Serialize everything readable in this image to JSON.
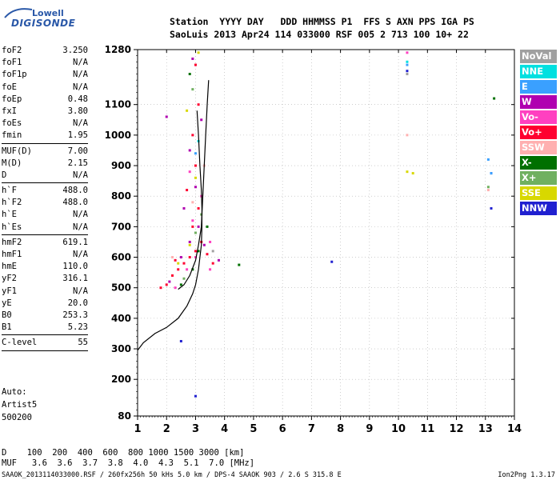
{
  "logo": {
    "word": "Lowell",
    "brand": "DIGISONDE"
  },
  "header": {
    "keys": "Station  YYYY DAY   DDD HHMMSS P1  FFS S AXN PPS IGA PS",
    "values": "SaoLuis 2013 Apr24 114 033000 RSF 005 2 713 100 10+ 22"
  },
  "parameters": [
    {
      "name": "foF2",
      "value": "3.250"
    },
    {
      "name": "foF1",
      "value": "N/A"
    },
    {
      "name": "foF1p",
      "value": "N/A"
    },
    {
      "name": "foE",
      "value": "N/A"
    },
    {
      "name": "foEp",
      "value": "0.48"
    },
    {
      "name": "fxI",
      "value": "3.80"
    },
    {
      "name": "foEs",
      "value": "N/A"
    },
    {
      "name": "fmin",
      "value": "1.95"
    },
    {
      "divider": true
    },
    {
      "name": "MUF(D)",
      "value": "7.00"
    },
    {
      "name": "M(D)",
      "value": "2.15"
    },
    {
      "name": "D",
      "value": "N/A"
    },
    {
      "divider": true
    },
    {
      "name": "h`F",
      "value": "488.0"
    },
    {
      "name": "h`F2",
      "value": "488.0"
    },
    {
      "name": "h`E",
      "value": "N/A"
    },
    {
      "name": "h`Es",
      "value": "N/A"
    },
    {
      "divider": true
    },
    {
      "name": "hmF2",
      "value": "619.1"
    },
    {
      "name": "hmF1",
      "value": "N/A"
    },
    {
      "name": "hmE",
      "value": "110.0"
    },
    {
      "name": "yF2",
      "value": "316.1"
    },
    {
      "name": "yF1",
      "value": "N/A"
    },
    {
      "name": "yE",
      "value": "20.0"
    },
    {
      "name": "B0",
      "value": "253.3"
    },
    {
      "name": "B1",
      "value": "5.23"
    },
    {
      "divider": true
    },
    {
      "name": "C-level",
      "value": "55"
    },
    {
      "divider": true
    }
  ],
  "autoscaling": {
    "label": "Auto:",
    "artist": "Artist5",
    "version": "500200"
  },
  "legend": [
    {
      "label": "NoVal",
      "color": "#a0a0a0"
    },
    {
      "label": "NNE",
      "color": "#00e0e0"
    },
    {
      "label": "E",
      "color": "#3aa0ff"
    },
    {
      "label": "W",
      "color": "#b000b0"
    },
    {
      "label": "Vo-",
      "color": "#ff40c0"
    },
    {
      "label": "Vo+",
      "color": "#ff0030"
    },
    {
      "label": "SSW",
      "color": "#ffb0b0"
    },
    {
      "label": "X-",
      "color": "#007000"
    },
    {
      "label": "X+",
      "color": "#70b060"
    },
    {
      "label": "SSE",
      "color": "#d8d800"
    },
    {
      "label": "NNW",
      "color": "#2020d0"
    }
  ],
  "bottom": {
    "distance_row": "D    100  200  400  600  800 1000 1500 3000 [km]",
    "muf_row": "MUF   3.6  3.6  3.7  3.8  4.0  4.3  5.1  7.0 [MHz]",
    "footer": "SAAOK_2013114033000.RSF / 260fx256h 50 kHs 5.0 km / DPS-4 SAAOK 903 / 2.6 S 315.8 E",
    "footer_version": "Ion2Png 1.3.17"
  },
  "chart_data": {
    "type": "scatter",
    "title": "",
    "xlabel": "",
    "ylabel": "",
    "xlim": [
      1,
      14
    ],
    "ylim": [
      80,
      1280
    ],
    "x_ticks": [
      1,
      2,
      3,
      4,
      5,
      6,
      7,
      8,
      9,
      10,
      11,
      12,
      13,
      14
    ],
    "y_ticks": [
      80,
      200,
      300,
      400,
      500,
      600,
      700,
      800,
      900,
      1000,
      1100,
      1280
    ],
    "grid": true,
    "legend_position": "right",
    "series": [
      {
        "name": "Vo+",
        "color": "#ff0030",
        "points": [
          [
            2.0,
            510
          ],
          [
            2.2,
            540
          ],
          [
            2.4,
            560
          ],
          [
            2.6,
            580
          ],
          [
            2.8,
            600
          ],
          [
            3.0,
            620
          ],
          [
            3.2,
            650
          ],
          [
            2.9,
            700
          ],
          [
            3.1,
            760
          ],
          [
            2.7,
            820
          ],
          [
            3.0,
            900
          ],
          [
            2.9,
            1000
          ],
          [
            3.1,
            1100
          ],
          [
            3.0,
            1230
          ],
          [
            1.8,
            500
          ],
          [
            2.3,
            590
          ],
          [
            3.4,
            610
          ],
          [
            3.6,
            580
          ]
        ]
      },
      {
        "name": "W",
        "color": "#b000b0",
        "points": [
          [
            2.1,
            520
          ],
          [
            2.5,
            600
          ],
          [
            2.8,
            650
          ],
          [
            3.1,
            700
          ],
          [
            3.3,
            640
          ],
          [
            2.6,
            760
          ],
          [
            3.0,
            830
          ],
          [
            2.8,
            950
          ],
          [
            3.2,
            1050
          ],
          [
            2.0,
            1060
          ],
          [
            2.9,
            1250
          ],
          [
            3.8,
            590
          ]
        ]
      },
      {
        "name": "Vo-",
        "color": "#ff40c0",
        "points": [
          [
            2.3,
            500
          ],
          [
            2.7,
            560
          ],
          [
            3.0,
            600
          ],
          [
            3.5,
            650
          ],
          [
            2.9,
            720
          ],
          [
            3.2,
            800
          ],
          [
            2.8,
            880
          ],
          [
            10.3,
            1270
          ],
          [
            3.5,
            560
          ]
        ]
      },
      {
        "name": "X-",
        "color": "#007000",
        "points": [
          [
            2.5,
            510
          ],
          [
            2.9,
            560
          ],
          [
            3.1,
            620
          ],
          [
            3.4,
            700
          ],
          [
            4.5,
            575
          ],
          [
            13.3,
            1120
          ],
          [
            2.8,
            1200
          ]
        ]
      },
      {
        "name": "X+",
        "color": "#70b060",
        "points": [
          [
            2.6,
            530
          ],
          [
            3.0,
            680
          ],
          [
            3.2,
            740
          ],
          [
            2.9,
            1150
          ],
          [
            13.1,
            830
          ]
        ]
      },
      {
        "name": "SSE",
        "color": "#d8d800",
        "points": [
          [
            2.4,
            580
          ],
          [
            2.8,
            640
          ],
          [
            3.0,
            860
          ],
          [
            2.7,
            1080
          ],
          [
            3.1,
            1270
          ],
          [
            10.3,
            880
          ],
          [
            10.5,
            875
          ]
        ]
      },
      {
        "name": "SSW",
        "color": "#ffb0b0",
        "points": [
          [
            2.2,
            600
          ],
          [
            2.9,
            780
          ],
          [
            3.3,
            900
          ],
          [
            10.3,
            1000
          ],
          [
            13.1,
            820
          ]
        ]
      },
      {
        "name": "NNW",
        "color": "#2020d0",
        "points": [
          [
            7.7,
            585
          ],
          [
            10.3,
            1210
          ],
          [
            13.2,
            760
          ],
          [
            3.0,
            145
          ],
          [
            2.5,
            325
          ],
          [
            13.2,
            875
          ]
        ]
      },
      {
        "name": "E",
        "color": "#3aa0ff",
        "points": [
          [
            10.3,
            1230
          ],
          [
            13.1,
            920
          ],
          [
            13.2,
            875
          ],
          [
            3.0,
            940
          ]
        ]
      },
      {
        "name": "NNE",
        "color": "#00e0e0",
        "points": [
          [
            10.3,
            1240
          ],
          [
            3.1,
            980
          ]
        ]
      },
      {
        "name": "NoVal",
        "color": "#a0a0a0",
        "points": [
          [
            10.3,
            1200
          ],
          [
            3.6,
            620
          ]
        ]
      }
    ],
    "profile_curve": {
      "color": "#000000",
      "points": [
        [
          1.0,
          295
        ],
        [
          1.2,
          320
        ],
        [
          1.6,
          350
        ],
        [
          2.0,
          370
        ],
        [
          2.4,
          400
        ],
        [
          2.7,
          440
        ],
        [
          2.9,
          480
        ],
        [
          3.0,
          510
        ],
        [
          3.1,
          560
        ],
        [
          3.15,
          600
        ],
        [
          3.2,
          640
        ],
        [
          3.22,
          700
        ],
        [
          3.22,
          760
        ],
        [
          3.2,
          820
        ],
        [
          3.15,
          900
        ],
        [
          3.1,
          1000
        ],
        [
          3.05,
          1080
        ]
      ]
    },
    "trace_curve": {
      "color": "#000000",
      "points": [
        [
          2.4,
          495
        ],
        [
          2.6,
          510
        ],
        [
          2.8,
          540
        ],
        [
          3.0,
          590
        ],
        [
          3.1,
          640
        ],
        [
          3.2,
          700
        ],
        [
          3.25,
          800
        ],
        [
          3.3,
          900
        ],
        [
          3.35,
          1000
        ],
        [
          3.4,
          1100
        ],
        [
          3.45,
          1180
        ]
      ]
    }
  }
}
